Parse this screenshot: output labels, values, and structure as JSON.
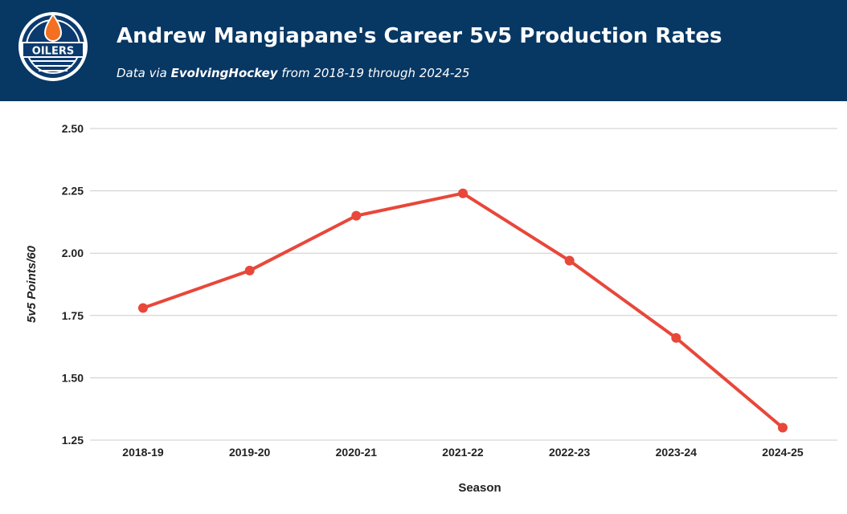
{
  "header": {
    "logo_text": "OILERS",
    "title": "Andrew Mangiapane's Career 5v5 Production Rates",
    "subtitle_prefix": "Data via ",
    "subtitle_source": "EvolvingHockey",
    "subtitle_suffix": " from 2018-19 through 2024-25"
  },
  "colors": {
    "header_bg": "#073763",
    "line": "#e8473a",
    "logo_orange": "#f36f21",
    "logo_blue": "#0b3a6e"
  },
  "chart_data": {
    "type": "line",
    "title": "Andrew Mangiapane's Career 5v5 Production Rates",
    "xlabel": "Season",
    "ylabel": "5v5 Points/60",
    "categories": [
      "2018-19",
      "2019-20",
      "2020-21",
      "2021-22",
      "2022-23",
      "2023-24",
      "2024-25"
    ],
    "series": [
      {
        "name": "5v5 Points/60",
        "values": [
          1.78,
          1.93,
          2.15,
          2.24,
          1.97,
          1.66,
          1.3
        ]
      }
    ],
    "ylim": [
      1.25,
      2.5
    ],
    "yticks": [
      "1.25",
      "1.50",
      "1.75",
      "2.00",
      "2.25",
      "2.50"
    ],
    "grid": true
  }
}
